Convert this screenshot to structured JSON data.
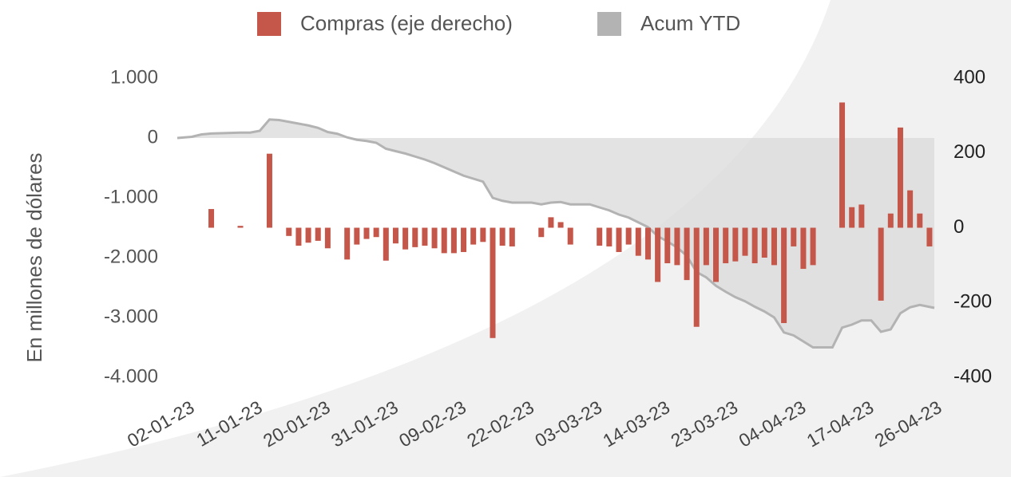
{
  "chart_data": {
    "type": "bar",
    "categories": [
      "02-01-23",
      null,
      null,
      null,
      null,
      null,
      null,
      "11-01-23",
      null,
      null,
      null,
      null,
      null,
      null,
      "20-01-23",
      null,
      null,
      null,
      null,
      null,
      null,
      "31-01-23",
      null,
      null,
      null,
      null,
      null,
      null,
      "09-02-23",
      null,
      null,
      null,
      null,
      null,
      null,
      "22-02-23",
      null,
      null,
      null,
      null,
      null,
      null,
      "03-03-23",
      null,
      null,
      null,
      null,
      null,
      null,
      "14-03-23",
      null,
      null,
      null,
      null,
      null,
      null,
      "23-03-23",
      null,
      null,
      null,
      null,
      null,
      null,
      "04-04-23",
      null,
      null,
      null,
      null,
      null,
      null,
      "17-04-23",
      null,
      null,
      null,
      null,
      null,
      null,
      "26-04-23"
    ],
    "series": [
      {
        "name": "Compras (eje derecho)",
        "color": "#c4574a",
        "axis": "y2",
        "type": "bar",
        "values": [
          null,
          null,
          null,
          50,
          null,
          null,
          5,
          null,
          null,
          198,
          null,
          -22,
          -48,
          -40,
          -35,
          -55,
          null,
          -85,
          -45,
          -30,
          -25,
          -88,
          -42,
          -58,
          -52,
          -48,
          -55,
          -68,
          -68,
          -65,
          -45,
          -38,
          -295,
          -48,
          -50,
          null,
          null,
          -25,
          28,
          15,
          -45,
          null,
          null,
          -48,
          -50,
          -65,
          -45,
          -75,
          -85,
          -145,
          -95,
          -100,
          -140,
          -265,
          -100,
          -145,
          -95,
          -90,
          -75,
          -95,
          -80,
          -100,
          -255,
          -50,
          -110,
          -100,
          null,
          null,
          335,
          55,
          62,
          null,
          -195,
          38,
          268,
          100,
          38,
          -50
        ]
      },
      {
        "name": "Acum YTD",
        "color": "#b3b3b3",
        "type": "area",
        "values": [
          0,
          20,
          60,
          75,
          80,
          85,
          90,
          90,
          120,
          310,
          300,
          270,
          240,
          210,
          170,
          100,
          70,
          10,
          -30,
          -50,
          -80,
          -180,
          -220,
          -260,
          -310,
          -360,
          -420,
          -490,
          -560,
          -630,
          -680,
          -730,
          -1000,
          -1050,
          -1080,
          -1080,
          -1080,
          -1110,
          -1080,
          -1070,
          -1110,
          -1110,
          -1110,
          -1160,
          -1210,
          -1280,
          -1330,
          -1410,
          -1490,
          -1640,
          -1730,
          -1830,
          -1970,
          -2240,
          -2330,
          -2470,
          -2570,
          -2660,
          -2730,
          -2820,
          -2900,
          -3000,
          -3250,
          -3300,
          -3400,
          -3500,
          -3500,
          -3500,
          -3170,
          -3120,
          -3050,
          -3050,
          -3240,
          -3200,
          -2930,
          -2830,
          -2790,
          -2840
        ]
      }
    ],
    "y_label": "En millones de dólares",
    "ylim": [
      -4000,
      1000
    ],
    "yticks": [
      {
        "value": 1000,
        "label": "1.000"
      },
      0,
      {
        "value": -1000,
        "label": "-1.000"
      },
      {
        "value": -2000,
        "label": "-2.000"
      },
      {
        "value": -3000,
        "label": "-3.000"
      },
      {
        "value": -4000,
        "label": "-4.000"
      }
    ],
    "y2lim": [
      -400,
      400
    ],
    "y2ticks": [
      400,
      200,
      0,
      -200,
      -400
    ],
    "legend": "top"
  }
}
